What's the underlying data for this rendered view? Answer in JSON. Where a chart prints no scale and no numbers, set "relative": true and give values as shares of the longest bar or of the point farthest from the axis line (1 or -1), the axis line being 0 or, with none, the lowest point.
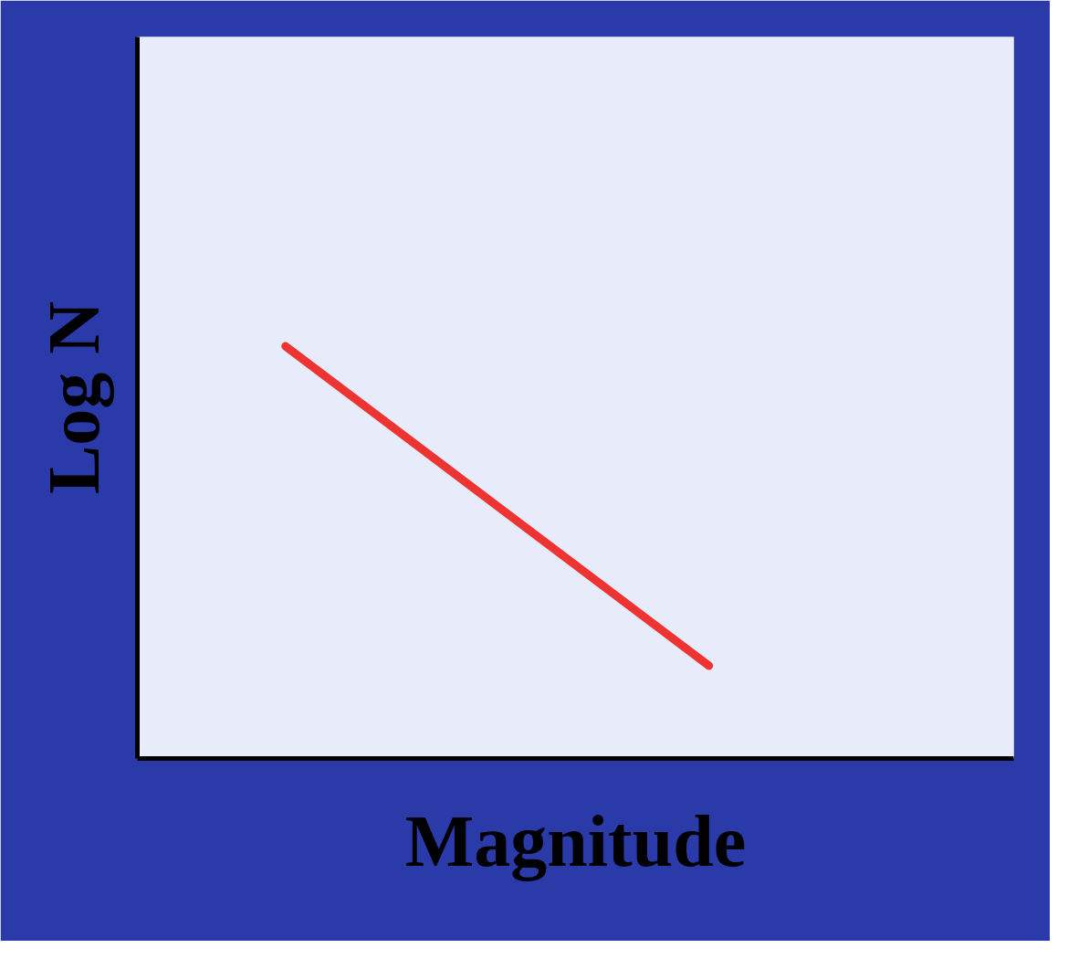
{
  "chart_data": {
    "type": "line",
    "xlabel": "Magnitude",
    "ylabel": "Log N",
    "relative": true,
    "categories": [
      null,
      null
    ],
    "series": [
      {
        "color": "#ee3333",
        "values": [
          1,
          0.225
        ]
      }
    ],
    "grid": false,
    "marker": "none",
    "line_style": "solid"
  }
}
